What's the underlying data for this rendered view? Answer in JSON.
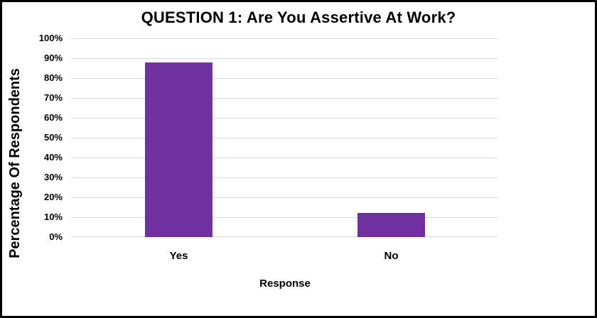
{
  "chart_data": {
    "type": "bar",
    "title": "QUESTION 1: Are You Assertive At Work?",
    "categories": [
      "Yes",
      "No"
    ],
    "values": [
      88,
      12
    ],
    "xlabel": "Response",
    "ylabel": "Percentage Of Respondents",
    "ylim": [
      0,
      100
    ],
    "ytick_step": 10,
    "ytick_labels": [
      "0%",
      "10%",
      "20%",
      "30%",
      "40%",
      "50%",
      "60%",
      "70%",
      "80%",
      "90%",
      "100%"
    ],
    "grid": true,
    "legend": "none",
    "bar_color": "#7030A0",
    "gridline_color": "#D9D9D9",
    "frame_color": "#000000",
    "text_color": "#000000"
  }
}
